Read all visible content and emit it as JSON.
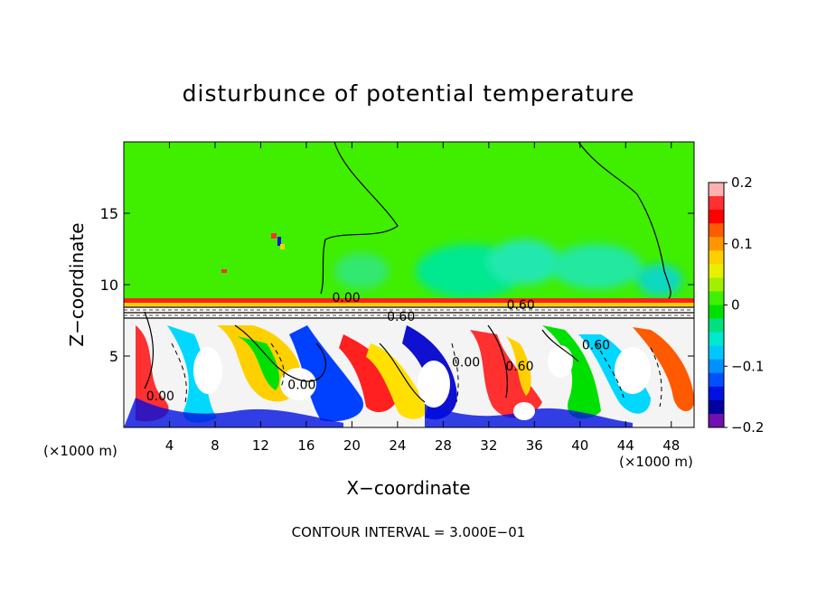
{
  "chart_data": {
    "type": "heatmap",
    "title": "disturbunce of potential temperature",
    "xlabel": "X−coordinate",
    "ylabel": "Z−coordinate",
    "x_unit_label": "(×1000 m)",
    "y_unit_label": "(×1000 m)",
    "footer": "CONTOUR INTERVAL = 3.000E−01",
    "xlim": [
      0,
      50
    ],
    "ylim": [
      0,
      20
    ],
    "x_ticks": [
      "4",
      "8",
      "12",
      "16",
      "20",
      "24",
      "28",
      "32",
      "36",
      "40",
      "44",
      "48"
    ],
    "x_tick_values": [
      4,
      8,
      12,
      16,
      20,
      24,
      28,
      32,
      36,
      40,
      44,
      48
    ],
    "y_ticks": [
      "5",
      "10",
      "15"
    ],
    "y_tick_values": [
      5,
      10,
      15
    ],
    "colorbar": {
      "min": -0.2,
      "max": 0.2,
      "tick_labels": [
        "0.2",
        "0.1",
        "0",
        "−0.1",
        "−0.2"
      ],
      "tick_values": [
        0.2,
        0.1,
        0,
        -0.1,
        -0.2
      ],
      "colors": [
        "#ffb0b0",
        "#ff3030",
        "#ff0000",
        "#ff5a00",
        "#ff9600",
        "#ffd000",
        "#e8f000",
        "#a0f000",
        "#40f000",
        "#00e000",
        "#00e080",
        "#00e8d0",
        "#00c8ff",
        "#0090ff",
        "#0050ff",
        "#0010e0",
        "#0000a0",
        "#7010b0"
      ]
    },
    "contour_labels": [
      {
        "text": "0.00",
        "x": 19.5,
        "z": 9.1
      },
      {
        "text": "0.60",
        "x": 24.3,
        "z": 7.8
      },
      {
        "text": "0.60",
        "x": 34.8,
        "z": 8.6
      },
      {
        "text": "0.00",
        "x": 15.6,
        "z": 3.0
      },
      {
        "text": "0.00",
        "x": 30.0,
        "z": 4.6
      },
      {
        "text": "0.60",
        "x": 34.7,
        "z": 4.3
      },
      {
        "text": "0.60",
        "x": 41.4,
        "z": 5.8
      },
      {
        "text": "0.00",
        "x": 3.2,
        "z": 2.2
      }
    ]
  }
}
